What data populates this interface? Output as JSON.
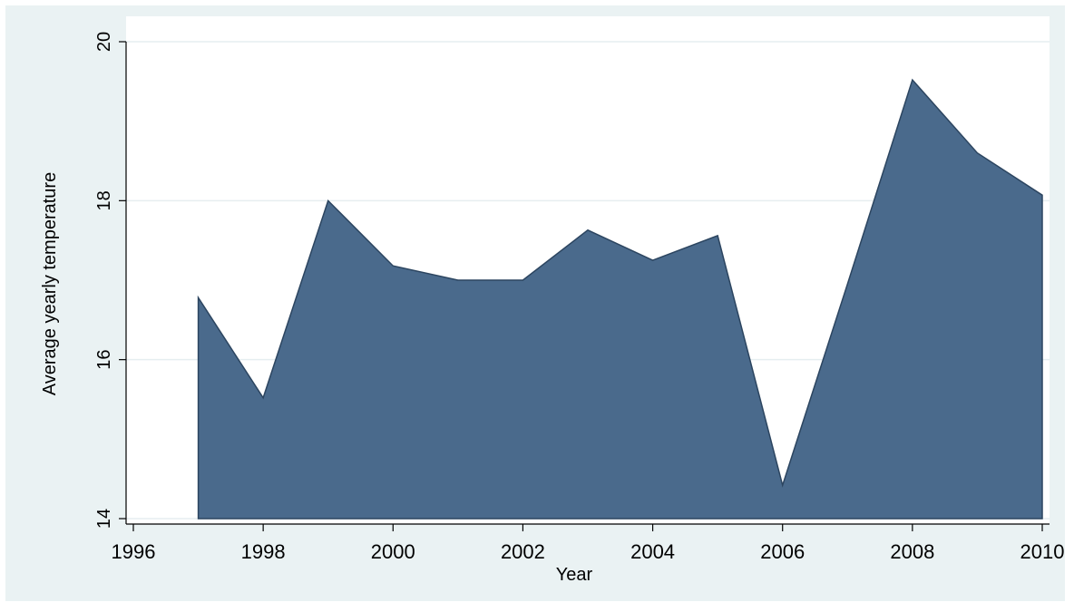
{
  "chart_data": {
    "type": "area",
    "title": "",
    "xlabel": "Year",
    "ylabel": "Average yearly temperature",
    "xlim": [
      1996,
      2010
    ],
    "ylim": [
      14,
      20
    ],
    "xticks": [
      1996,
      1998,
      2000,
      2002,
      2004,
      2006,
      2008,
      2010
    ],
    "yticks": [
      14,
      16,
      18,
      20
    ],
    "grid": "horizontal",
    "legend": "none",
    "series": [
      {
        "x": [
          1997,
          1998,
          1999,
          2000,
          2001,
          2002,
          2003,
          2004,
          2005,
          2006,
          2007,
          2008,
          2009,
          2010
        ],
        "y": [
          16.78,
          15.52,
          18.0,
          17.18,
          17.0,
          17.0,
          17.63,
          17.25,
          17.56,
          14.42,
          16.95,
          19.52,
          18.6,
          18.07
        ],
        "color": "#4a6a8c"
      }
    ],
    "background_color": "#eaf2f3",
    "plot_background_color": "#ffffff"
  }
}
